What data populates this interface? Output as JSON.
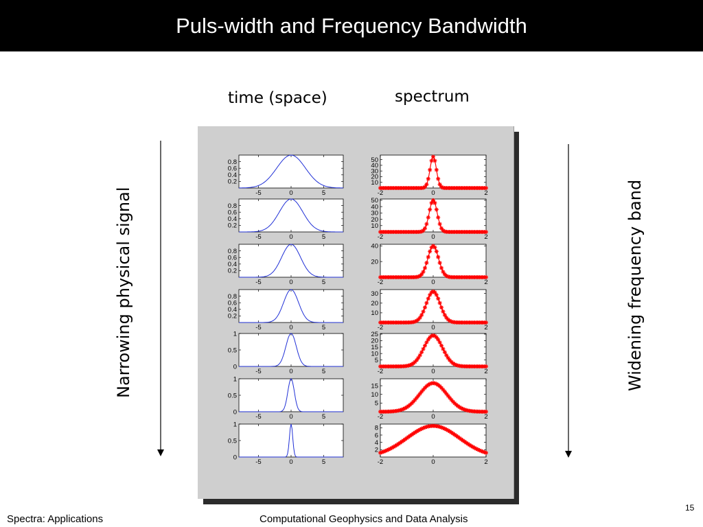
{
  "slide": {
    "title": "Puls-width and Frequency Bandwidth",
    "col_time": "time (space)",
    "col_spectrum": "spectrum",
    "left_label": "Narrowing physical signal",
    "right_label": "Widening frequency band",
    "footer_left": "Spectra: Applications",
    "footer_center": "Computational Geophysics and Data Analysis",
    "page_number": "15"
  },
  "colors": {
    "time_line": "#1f2fd6",
    "spectrum_line": "#ff0000",
    "figure_bg": "#cfcfcf",
    "axes_bg": "#ffffff"
  },
  "chart_data": {
    "type": "line",
    "layout": "7 rows x 2 columns of small multiples",
    "time_panels": {
      "xlim": [
        -8,
        8
      ],
      "xticks": [
        -5,
        0,
        5
      ],
      "series_shape": "gaussian pulse centered at 0, narrowing down the rows",
      "rows": [
        {
          "sigma": 2.2,
          "ylim": [
            0,
            1
          ],
          "yticks": [
            0.2,
            0.4,
            0.6,
            0.8
          ],
          "ytick_labels": [
            "0.2",
            "0.4",
            "0.6",
            "0.8"
          ]
        },
        {
          "sigma": 1.8,
          "ylim": [
            0,
            1
          ],
          "yticks": [
            0.2,
            0.4,
            0.6,
            0.8
          ],
          "ytick_labels": [
            "0.2",
            "0.4",
            "0.6",
            "0.8"
          ]
        },
        {
          "sigma": 1.45,
          "ylim": [
            0,
            1
          ],
          "yticks": [
            0.2,
            0.4,
            0.6,
            0.8
          ],
          "ytick_labels": [
            "0.2",
            "0.4",
            "0.6",
            "0.8"
          ]
        },
        {
          "sigma": 1.15,
          "ylim": [
            0,
            1
          ],
          "yticks": [
            0.2,
            0.4,
            0.6,
            0.8
          ],
          "ytick_labels": [
            "0.2",
            "0.4",
            "0.6",
            "0.8"
          ]
        },
        {
          "sigma": 0.8,
          "ylim": [
            0,
            1
          ],
          "yticks": [
            0,
            0.5,
            1
          ],
          "ytick_labels": [
            "0",
            "0.5",
            "1"
          ]
        },
        {
          "sigma": 0.5,
          "ylim": [
            0,
            1
          ],
          "yticks": [
            0,
            0.5,
            1
          ],
          "ytick_labels": [
            "0",
            "0.5",
            "1"
          ]
        },
        {
          "sigma": 0.25,
          "ylim": [
            0,
            1
          ],
          "yticks": [
            0,
            0.5,
            1
          ],
          "ytick_labels": [
            "0",
            "0.5",
            "1"
          ]
        }
      ]
    },
    "spectrum_panels": {
      "xlim": [
        -2,
        2
      ],
      "xticks": [
        -2,
        0,
        2
      ],
      "series_shape": "gaussian spectrum with star markers, widening down the rows",
      "marker": "+",
      "rows": [
        {
          "peak": 55,
          "sigma": 0.12,
          "ylim": [
            0,
            58
          ],
          "yticks": [
            10,
            20,
            30,
            40,
            50
          ],
          "ytick_labels": [
            "10",
            "20",
            "30",
            "40",
            "50"
          ]
        },
        {
          "peak": 50,
          "sigma": 0.15,
          "ylim": [
            0,
            52
          ],
          "yticks": [
            10,
            20,
            30,
            40,
            50
          ],
          "ytick_labels": [
            "10",
            "20",
            "30",
            "40",
            "50"
          ]
        },
        {
          "peak": 40,
          "sigma": 0.2,
          "ylim": [
            0,
            42
          ],
          "yticks": [
            20,
            40
          ],
          "ytick_labels": [
            "20",
            "40"
          ]
        },
        {
          "peak": 32,
          "sigma": 0.26,
          "ylim": [
            0,
            34
          ],
          "yticks": [
            10,
            20,
            30
          ],
          "ytick_labels": [
            "10",
            "20",
            "30"
          ]
        },
        {
          "peak": 24,
          "sigma": 0.35,
          "ylim": [
            0,
            25.5
          ],
          "yticks": [
            5,
            10,
            15,
            20,
            25
          ],
          "ytick_labels": [
            "5",
            "10",
            "15",
            "20",
            "25"
          ]
        },
        {
          "peak": 16.5,
          "sigma": 0.52,
          "ylim": [
            0,
            19
          ],
          "yticks": [
            5,
            10,
            15
          ],
          "ytick_labels": [
            "5",
            "10",
            "15"
          ]
        },
        {
          "peak": 8.5,
          "sigma": 1.0,
          "ylim": [
            0,
            9
          ],
          "yticks": [
            2,
            4,
            6,
            8
          ],
          "ytick_labels": [
            "2",
            "4",
            "6",
            "8"
          ]
        }
      ]
    }
  }
}
